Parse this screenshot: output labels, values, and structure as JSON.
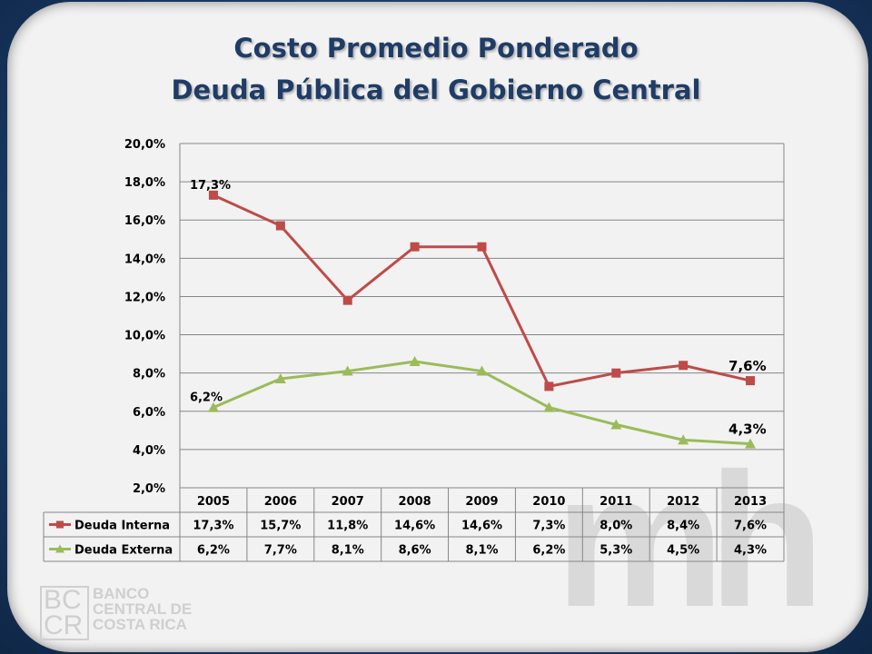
{
  "title": {
    "line1": "Costo Promedio Ponderado",
    "line2": "Deuda Pública del Gobierno Central"
  },
  "colors": {
    "interna": "#be4b48",
    "externa": "#9bbb59",
    "title": "#1f3c66",
    "grid": "#868686"
  },
  "logo": {
    "mark_line1": "BC",
    "mark_line2": "CR",
    "name_line1": "BANCO",
    "name_line2": "CENTRAL DE",
    "name_line3": "COSTA RICA"
  },
  "watermark": "mh",
  "chart_data": {
    "type": "line",
    "categories": [
      "2005",
      "2006",
      "2007",
      "2008",
      "2009",
      "2010",
      "2011",
      "2012",
      "2013"
    ],
    "series": [
      {
        "name": "Deuda Interna",
        "marker": "square",
        "values": [
          17.3,
          15.7,
          11.8,
          14.6,
          14.6,
          7.3,
          8.0,
          8.4,
          7.6
        ],
        "labels": [
          "17,3%",
          "15,7%",
          "11,8%",
          "14,6%",
          "14,6%",
          "7,3%",
          "8,0%",
          "8,4%",
          "7,6%"
        ]
      },
      {
        "name": "Deuda Externa",
        "marker": "triangle",
        "values": [
          6.2,
          7.7,
          8.1,
          8.6,
          8.1,
          6.2,
          5.3,
          4.5,
          4.3
        ],
        "labels": [
          "6,2%",
          "7,7%",
          "8,1%",
          "8,6%",
          "8,1%",
          "6,2%",
          "5,3%",
          "4,5%",
          "4,3%"
        ]
      }
    ],
    "y_ticks": [
      "2,0%",
      "4,0%",
      "6,0%",
      "8,0%",
      "10,0%",
      "12,0%",
      "14,0%",
      "16,0%",
      "18,0%",
      "20,0%"
    ],
    "ylim": [
      2.0,
      20.0
    ],
    "grid": true,
    "data_table": true,
    "point_labels": [
      {
        "series": 0,
        "index": 0,
        "text": "17,3%"
      },
      {
        "series": 0,
        "index": 8,
        "text": "7,6%"
      },
      {
        "series": 1,
        "index": 0,
        "text": "6,2%"
      },
      {
        "series": 1,
        "index": 8,
        "text": "4,3%"
      }
    ]
  }
}
